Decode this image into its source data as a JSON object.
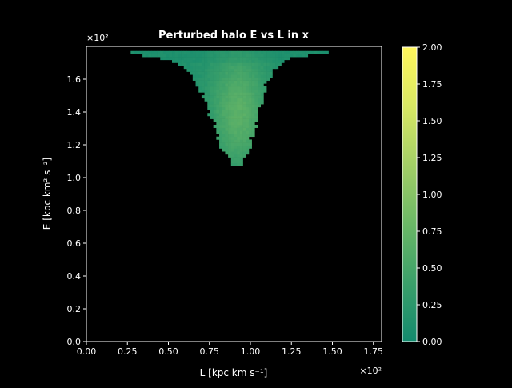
{
  "chart_data": {
    "type": "heatmap",
    "title": "Perturbed halo E vs L in x",
    "xlabel": "L [kpc km s⁻¹]",
    "ylabel": "E [kpc km² s⁻²]",
    "x_multiplier": "×10²",
    "y_multiplier": "×10²",
    "xlim": [
      0.0,
      1.8
    ],
    "ylim": [
      0.0,
      1.8
    ],
    "xticks": [
      "0.00",
      "0.25",
      "0.50",
      "0.75",
      "1.00",
      "1.25",
      "1.50",
      "1.75"
    ],
    "xtick_values": [
      0.0,
      0.25,
      0.5,
      0.75,
      1.0,
      1.25,
      1.5,
      1.75
    ],
    "yticks": [
      "0.0",
      "0.2",
      "0.4",
      "0.6",
      "0.8",
      "1.0",
      "1.2",
      "1.4",
      "1.6"
    ],
    "ytick_values": [
      0.0,
      0.2,
      0.4,
      0.6,
      0.8,
      1.0,
      1.2,
      1.4,
      1.6
    ],
    "colorbar": {
      "vmin": 0.0,
      "vmax": 2.0,
      "ticks": [
        "0.00",
        "0.25",
        "0.50",
        "0.75",
        "1.00",
        "1.25",
        "1.50",
        "1.75",
        "2.00"
      ],
      "tick_values": [
        0.0,
        0.25,
        0.5,
        0.75,
        1.0,
        1.25,
        1.5,
        1.75,
        2.0
      ],
      "colormap": [
        "#138a6e",
        "#3ba06a",
        "#6bb866",
        "#a3cf66",
        "#d8e864",
        "#fff65c"
      ]
    },
    "distribution": {
      "e_min": 1.07,
      "e_max": 1.78,
      "profile": [
        {
          "E": 1.78,
          "L_min": 0.21,
          "L_max": 1.55
        },
        {
          "E": 1.76,
          "L_min": 0.28,
          "L_max": 1.45
        },
        {
          "E": 1.74,
          "L_min": 0.4,
          "L_max": 1.3
        },
        {
          "E": 1.72,
          "L_min": 0.52,
          "L_max": 1.22
        },
        {
          "E": 1.68,
          "L_min": 0.6,
          "L_max": 1.16
        },
        {
          "E": 1.6,
          "L_min": 0.67,
          "L_max": 1.1
        },
        {
          "E": 1.5,
          "L_min": 0.72,
          "L_max": 1.07
        },
        {
          "E": 1.4,
          "L_min": 0.76,
          "L_max": 1.04
        },
        {
          "E": 1.3,
          "L_min": 0.8,
          "L_max": 1.02
        },
        {
          "E": 1.2,
          "L_min": 0.83,
          "L_max": 0.99
        },
        {
          "E": 1.12,
          "L_min": 0.87,
          "L_max": 0.96
        },
        {
          "E": 1.07,
          "L_min": 0.91,
          "L_max": 0.93
        }
      ],
      "peak_L": 0.92,
      "peak_E": 1.4,
      "peak_density": 0.62,
      "colors": {
        "background": "#000000",
        "axes_frame": "#ffffff"
      }
    }
  }
}
